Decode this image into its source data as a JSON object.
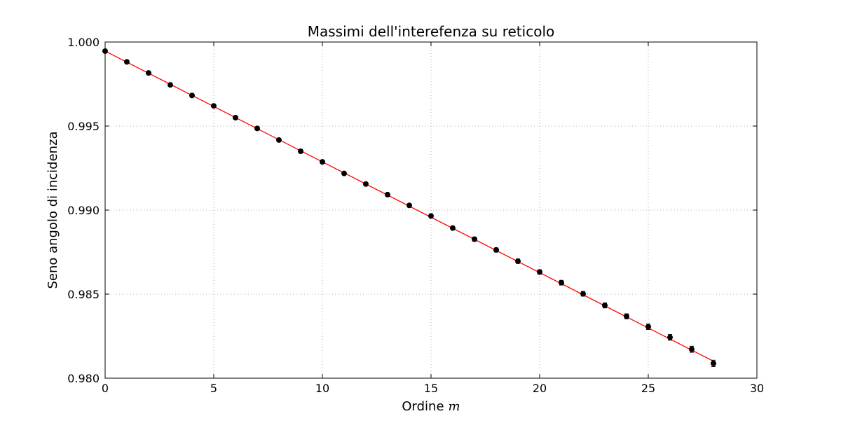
{
  "chart_data": {
    "type": "scatter",
    "title": "Massimi dell'interefenza su reticolo",
    "xlabel": "Ordine",
    "xlabel_math": "m",
    "ylabel": "Seno angolo di incidenza",
    "xlim": [
      0,
      30
    ],
    "ylim": [
      0.98,
      1.0
    ],
    "grid": true,
    "xticks": [
      "0",
      "5",
      "10",
      "15",
      "20",
      "25",
      "30"
    ],
    "yticks": [
      "0.980",
      "0.985",
      "0.990",
      "0.995",
      "1.000"
    ],
    "series": [
      {
        "kind": "errorbar",
        "marker_color": "#000000",
        "x": [
          0,
          1,
          2,
          3,
          4,
          5,
          6,
          7,
          8,
          9,
          10,
          11,
          12,
          13,
          14,
          15,
          16,
          17,
          18,
          19,
          20,
          21,
          22,
          23,
          24,
          25,
          26,
          27,
          28
        ],
        "y": [
          0.99946,
          0.99882,
          0.99816,
          0.99745,
          0.99682,
          0.9962,
          0.9955,
          0.99486,
          0.99417,
          0.9935,
          0.99287,
          0.99218,
          0.99155,
          0.99092,
          0.99028,
          0.98965,
          0.98893,
          0.98827,
          0.98763,
          0.98696,
          0.98632,
          0.98568,
          0.98502,
          0.98433,
          0.98368,
          0.98306,
          0.98243,
          0.98172,
          0.98088
        ],
        "yerr": [
          5e-05,
          5e-05,
          6e-05,
          6e-05,
          6e-05,
          7e-05,
          7e-05,
          8e-05,
          8e-05,
          8e-05,
          9e-05,
          9e-05,
          0.0001,
          0.0001,
          0.0001,
          0.00011,
          0.00011,
          0.00012,
          0.00012,
          0.00013,
          0.00013,
          0.00014,
          0.00014,
          0.00015,
          0.00015,
          0.00016,
          0.00017,
          0.00018,
          0.00019
        ]
      },
      {
        "kind": "fit-line",
        "line_color": "#ff0000",
        "x": [
          0,
          28
        ],
        "y": [
          0.99946,
          0.98101
        ]
      }
    ]
  }
}
